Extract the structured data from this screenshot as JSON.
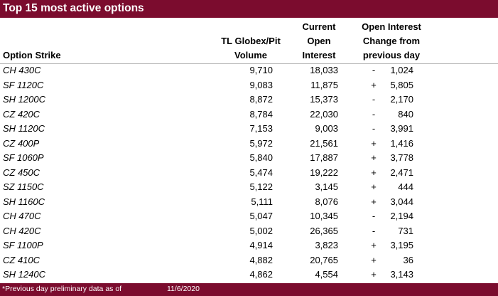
{
  "colors": {
    "brand": "#7b0c2e"
  },
  "title": "Top 15 most active options",
  "headers": {
    "strike": "Option Strike",
    "volume": [
      "TL Globex/Pit",
      "Volume"
    ],
    "open_interest": [
      "Current",
      "Open",
      "Interest"
    ],
    "change": [
      "Open Interest",
      "Change from",
      "previous day"
    ]
  },
  "rows": [
    {
      "strike": "CH 430C",
      "volume": "9,710",
      "open_interest": "18,033",
      "sign": "-",
      "change": "1,024"
    },
    {
      "strike": "SF 1120C",
      "volume": "9,083",
      "open_interest": "11,875",
      "sign": "+",
      "change": "5,805"
    },
    {
      "strike": "SH 1200C",
      "volume": "8,872",
      "open_interest": "15,373",
      "sign": "-",
      "change": "2,170"
    },
    {
      "strike": "CZ 420C",
      "volume": "8,784",
      "open_interest": "22,030",
      "sign": "-",
      "change": "840"
    },
    {
      "strike": "SH 1120C",
      "volume": "7,153",
      "open_interest": "9,003",
      "sign": "-",
      "change": "3,991"
    },
    {
      "strike": "CZ 400P",
      "volume": "5,972",
      "open_interest": "21,561",
      "sign": "+",
      "change": "1,416"
    },
    {
      "strike": "SF 1060P",
      "volume": "5,840",
      "open_interest": "17,887",
      "sign": "+",
      "change": "3,778"
    },
    {
      "strike": "CZ 450C",
      "volume": "5,474",
      "open_interest": "19,222",
      "sign": "+",
      "change": "2,471"
    },
    {
      "strike": "SZ 1150C",
      "volume": "5,122",
      "open_interest": "3,145",
      "sign": "+",
      "change": "444"
    },
    {
      "strike": "SH 1160C",
      "volume": "5,111",
      "open_interest": "8,076",
      "sign": "+",
      "change": "3,044"
    },
    {
      "strike": "CH 470C",
      "volume": "5,047",
      "open_interest": "10,345",
      "sign": "-",
      "change": "2,194"
    },
    {
      "strike": "CH 420C",
      "volume": "5,002",
      "open_interest": "26,365",
      "sign": "-",
      "change": "731"
    },
    {
      "strike": "SF 1100P",
      "volume": "4,914",
      "open_interest": "3,823",
      "sign": "+",
      "change": "3,195"
    },
    {
      "strike": "CZ 410C",
      "volume": "4,882",
      "open_interest": "20,765",
      "sign": "+",
      "change": "36"
    },
    {
      "strike": "SH 1240C",
      "volume": "4,862",
      "open_interest": "4,554",
      "sign": "+",
      "change": "3,143"
    }
  ],
  "footer": {
    "note": "*Previous day preliminary data as of",
    "date": "11/6/2020"
  }
}
